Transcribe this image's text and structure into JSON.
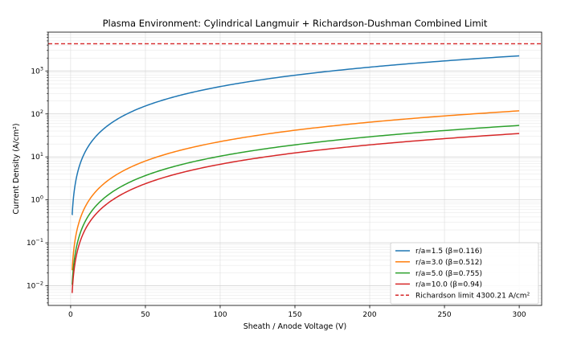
{
  "chart_data": {
    "type": "line",
    "title": "Plasma Environment: Cylindrical Langmuir + Richardson-Dushman Combined Limit",
    "xlabel": "Sheath / Anode Voltage (V)",
    "ylabel": "Current Density (A/cm²)",
    "xlim": [
      -15,
      315
    ],
    "ylim": [
      0.0035,
      8000
    ],
    "yscale": "log",
    "grid": true,
    "legend_position": "bottom-right",
    "x_ticks": [
      "0",
      "50",
      "100",
      "150",
      "200",
      "250",
      "300"
    ],
    "y_ticks": [
      {
        "base": "10",
        "exp": "−2"
      },
      {
        "base": "10",
        "exp": "−1"
      },
      {
        "base": "10",
        "exp": "0"
      },
      {
        "base": "10",
        "exp": "1"
      },
      {
        "base": "10",
        "exp": "2"
      },
      {
        "base": "10",
        "exp": "3"
      }
    ],
    "series": [
      {
        "name": "r/a=1.5 (β=0.116)",
        "color": "#1f77b4",
        "x": [
          1,
          300
        ],
        "y": [
          0.45,
          2250
        ]
      },
      {
        "name": "r/a=3.0 (β=0.512)",
        "color": "#ff7f0e",
        "x": [
          1,
          300
        ],
        "y": [
          0.023,
          118
        ]
      },
      {
        "name": "r/a=5.0 (β=0.755)",
        "color": "#2ca02c",
        "x": [
          1,
          300
        ],
        "y": [
          0.0105,
          54
        ]
      },
      {
        "name": "r/a=10.0 (β=0.94)",
        "color": "#d62728",
        "x": [
          1,
          300
        ],
        "y": [
          0.0068,
          35
        ]
      }
    ],
    "reference_line": {
      "name": "Richardson limit 4300.21 A/cm²",
      "y": 4300.21,
      "color": "#d62728",
      "style": "dashed"
    }
  }
}
